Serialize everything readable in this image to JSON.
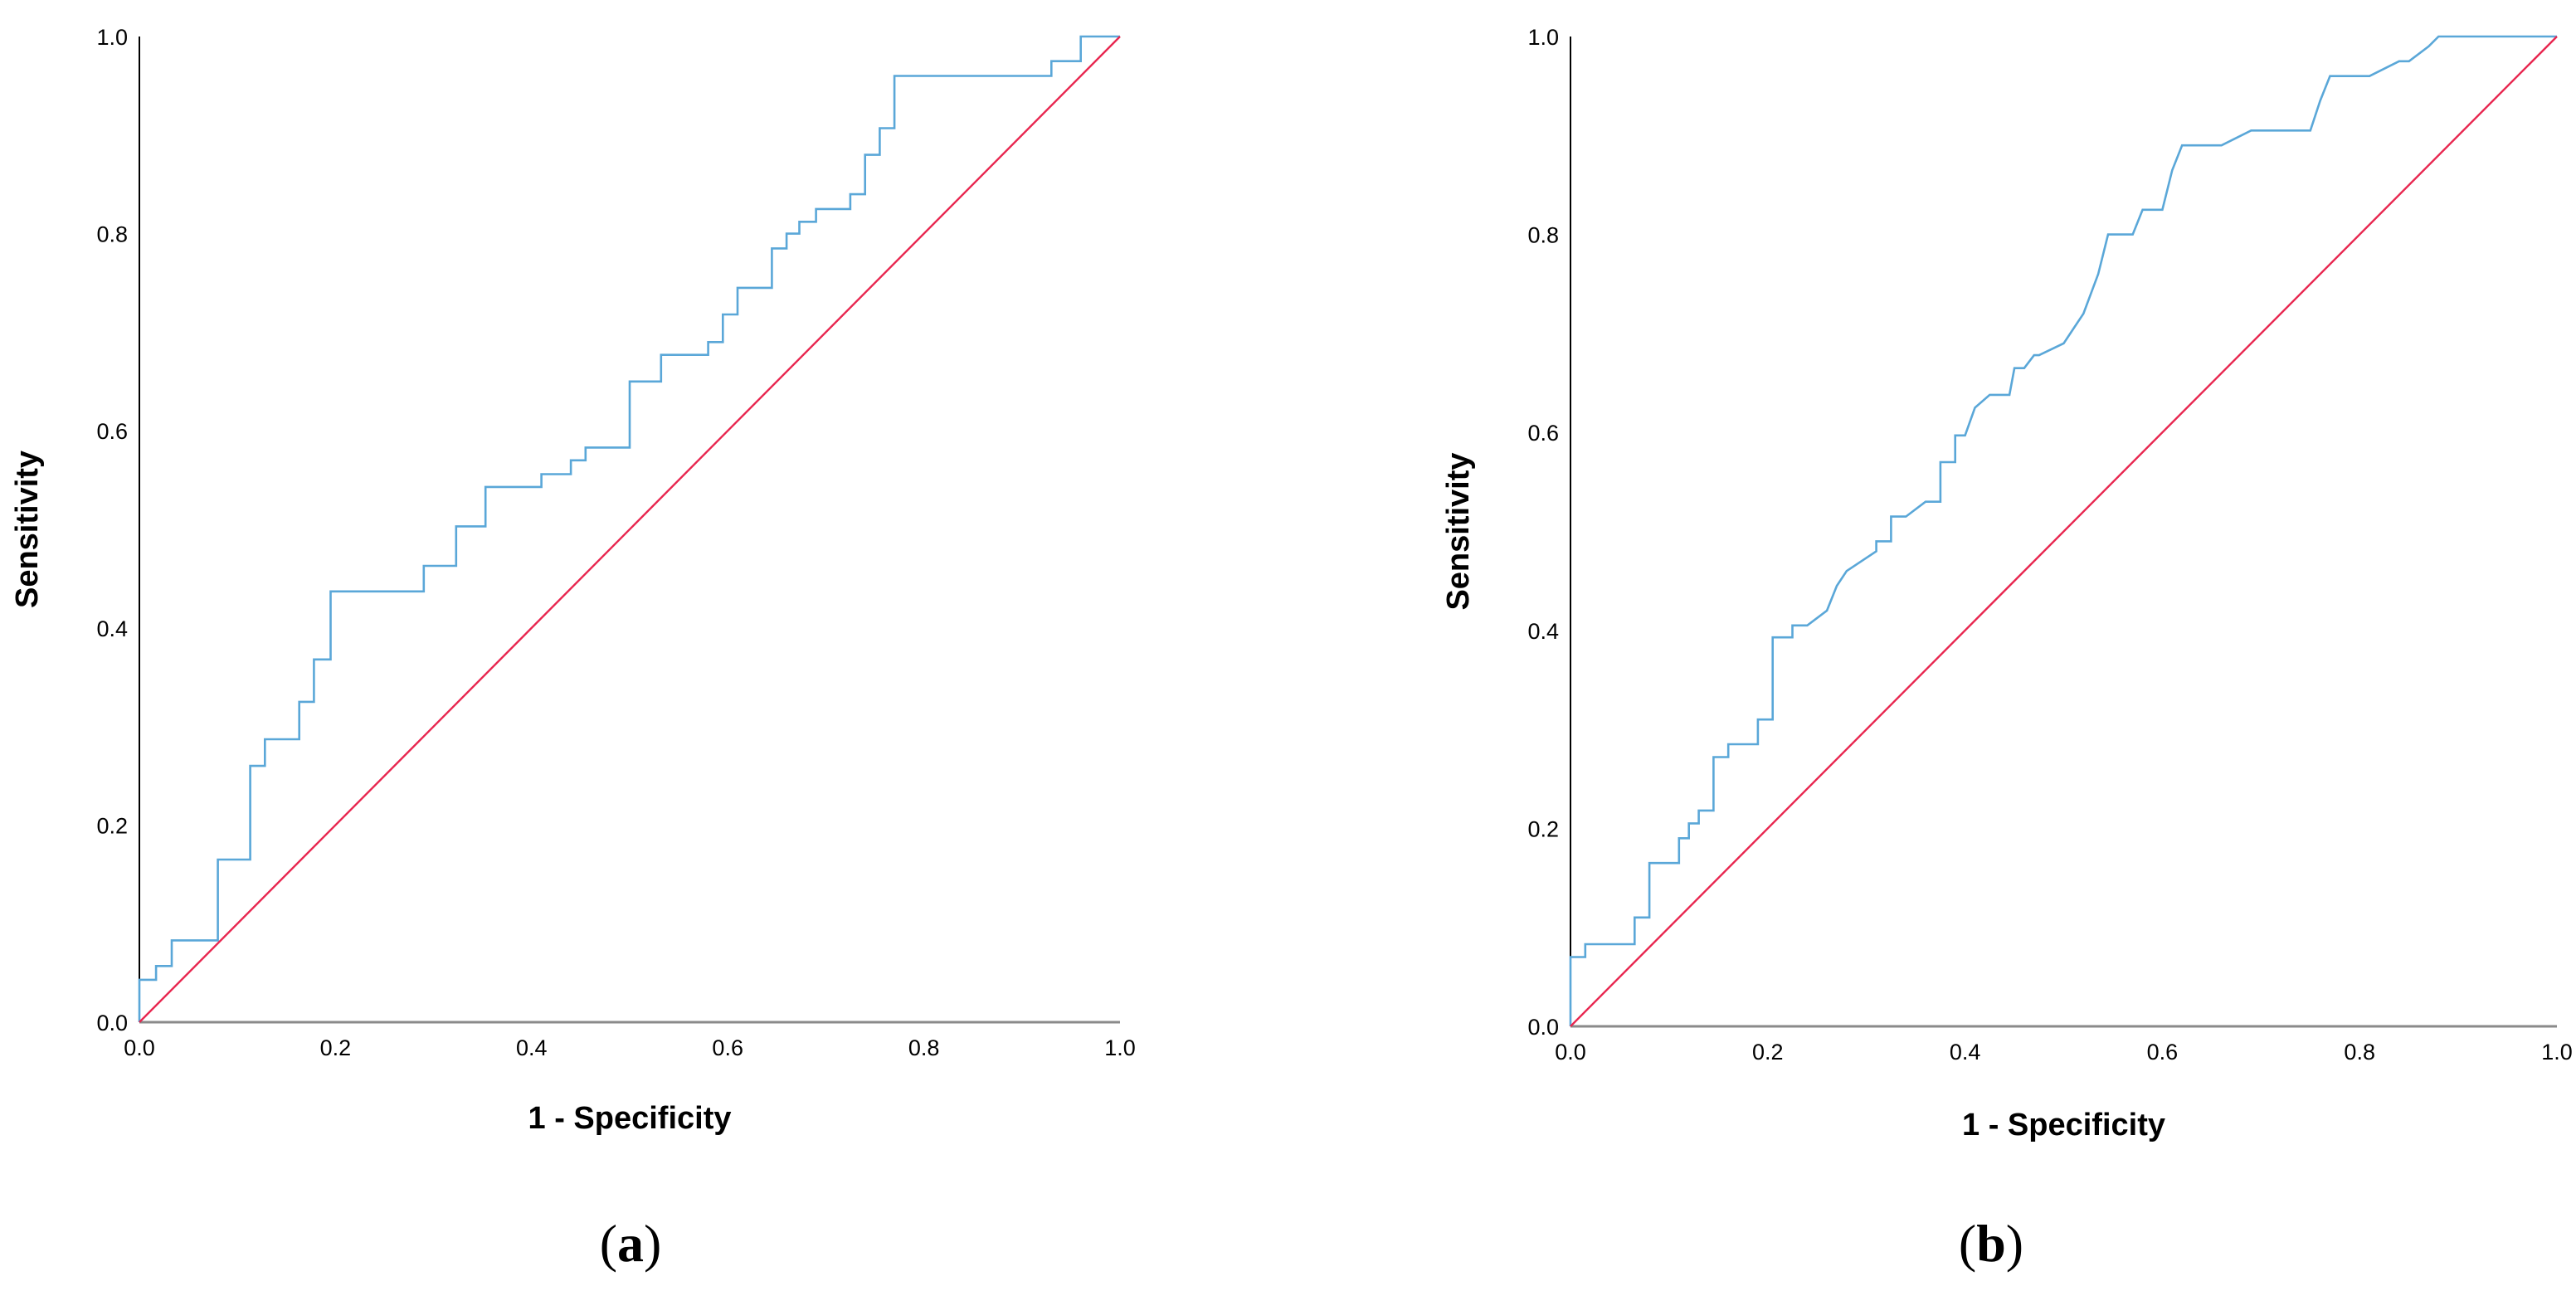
{
  "colors": {
    "roc": "#5aa7d8",
    "reference": "#e8264f",
    "axis": "#000000",
    "background": "#ffffff"
  },
  "chart_data": [
    {
      "type": "line",
      "panel": "a",
      "caption": "a",
      "xlabel": "1 - Specificity",
      "ylabel": "Sensitivity",
      "xlim": [
        0,
        1
      ],
      "ylim": [
        0,
        1
      ],
      "xticks": [
        "0.0",
        "0.2",
        "0.4",
        "0.6",
        "0.8",
        "1.0"
      ],
      "yticks": [
        "0.0",
        "0.2",
        "0.4",
        "0.6",
        "0.8",
        "1.0"
      ],
      "grid": false,
      "series": [
        {
          "name": "ROC curve",
          "color": "#5aa7d8",
          "x": [
            0,
            0,
            0.017,
            0.017,
            0.033,
            0.033,
            0.08,
            0.08,
            0.113,
            0.113,
            0.128,
            0.128,
            0.163,
            0.163,
            0.178,
            0.178,
            0.195,
            0.195,
            0.29,
            0.29,
            0.323,
            0.323,
            0.353,
            0.353,
            0.41,
            0.41,
            0.44,
            0.44,
            0.455,
            0.455,
            0.5,
            0.5,
            0.532,
            0.532,
            0.58,
            0.58,
            0.595,
            0.595,
            0.61,
            0.61,
            0.645,
            0.645,
            0.66,
            0.66,
            0.673,
            0.673,
            0.69,
            0.69,
            0.725,
            0.725,
            0.74,
            0.74,
            0.755,
            0.755,
            0.77,
            0.77,
            0.93,
            0.93,
            0.96,
            0.96,
            1.0
          ],
          "y": [
            0,
            0.043,
            0.043,
            0.057,
            0.057,
            0.083,
            0.083,
            0.165,
            0.165,
            0.26,
            0.26,
            0.287,
            0.287,
            0.325,
            0.325,
            0.368,
            0.368,
            0.437,
            0.437,
            0.463,
            0.463,
            0.503,
            0.503,
            0.543,
            0.543,
            0.556,
            0.556,
            0.57,
            0.57,
            0.583,
            0.583,
            0.65,
            0.65,
            0.677,
            0.677,
            0.69,
            0.69,
            0.718,
            0.718,
            0.745,
            0.745,
            0.785,
            0.785,
            0.8,
            0.8,
            0.812,
            0.812,
            0.825,
            0.825,
            0.84,
            0.84,
            0.88,
            0.88,
            0.907,
            0.907,
            0.96,
            0.96,
            0.975,
            0.975,
            1.0,
            1.0
          ]
        },
        {
          "name": "Reference line",
          "color": "#e8264f",
          "x": [
            0,
            1
          ],
          "y": [
            0,
            1
          ]
        }
      ]
    },
    {
      "type": "line",
      "panel": "b",
      "caption": "b",
      "xlabel": "1 - Specificity",
      "ylabel": "Sensitivity",
      "xlim": [
        0,
        1
      ],
      "ylim": [
        0,
        1
      ],
      "xticks": [
        "0.0",
        "0.2",
        "0.4",
        "0.6",
        "0.8",
        "1.0"
      ],
      "yticks": [
        "0.0",
        "0.2",
        "0.4",
        "0.6",
        "0.8",
        "1.0"
      ],
      "grid": false,
      "series": [
        {
          "name": "ROC curve",
          "color": "#5aa7d8",
          "x": [
            0,
            0,
            0.015,
            0.015,
            0.065,
            0.065,
            0.08,
            0.08,
            0.11,
            0.11,
            0.12,
            0.12,
            0.13,
            0.13,
            0.145,
            0.145,
            0.16,
            0.16,
            0.19,
            0.19,
            0.205,
            0.205,
            0.225,
            0.225,
            0.24,
            0.26,
            0.27,
            0.28,
            0.31,
            0.31,
            0.325,
            0.325,
            0.34,
            0.36,
            0.375,
            0.375,
            0.39,
            0.39,
            0.4,
            0.41,
            0.425,
            0.445,
            0.45,
            0.46,
            0.47,
            0.475,
            0.5,
            0.5,
            0.51,
            0.52,
            0.535,
            0.545,
            0.55,
            0.57,
            0.58,
            0.6,
            0.61,
            0.62,
            0.64,
            0.66,
            0.69,
            0.7,
            0.75,
            0.76,
            0.77,
            0.81,
            0.84,
            0.85,
            0.87,
            0.88,
            1.0
          ],
          "y": [
            0,
            0.07,
            0.07,
            0.083,
            0.083,
            0.11,
            0.11,
            0.165,
            0.165,
            0.19,
            0.19,
            0.205,
            0.205,
            0.218,
            0.218,
            0.272,
            0.272,
            0.285,
            0.285,
            0.31,
            0.31,
            0.393,
            0.393,
            0.405,
            0.405,
            0.42,
            0.445,
            0.46,
            0.48,
            0.49,
            0.49,
            0.515,
            0.515,
            0.53,
            0.53,
            0.57,
            0.57,
            0.597,
            0.597,
            0.625,
            0.638,
            0.638,
            0.665,
            0.665,
            0.678,
            0.678,
            0.69,
            0.69,
            0.705,
            0.72,
            0.76,
            0.8,
            0.8,
            0.8,
            0.825,
            0.825,
            0.865,
            0.89,
            0.89,
            0.89,
            0.905,
            0.905,
            0.905,
            0.935,
            0.96,
            0.96,
            0.975,
            0.975,
            0.99,
            1.0,
            1.0
          ]
        },
        {
          "name": "Reference line",
          "color": "#e8264f",
          "x": [
            0,
            1
          ],
          "y": [
            0,
            1
          ]
        }
      ]
    }
  ]
}
